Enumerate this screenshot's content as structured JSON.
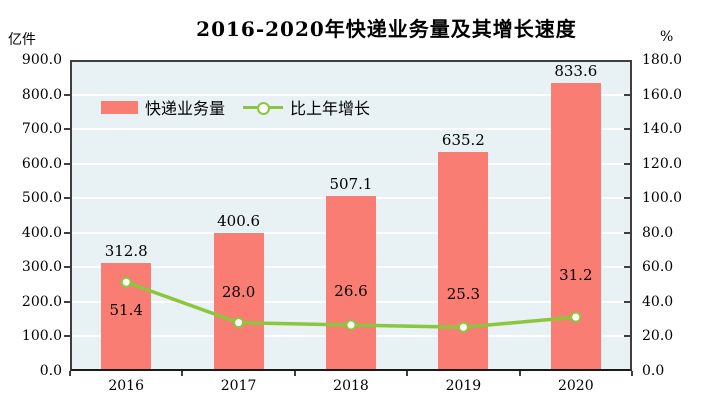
{
  "chart_data": {
    "type": "bar+line",
    "title": "2016-2020年快递业务量及其增长速度",
    "categories": [
      "2016",
      "2017",
      "2018",
      "2019",
      "2020"
    ],
    "series": [
      {
        "name": "快递业务量",
        "type": "bar",
        "axis": "left",
        "color": "#fa7d73",
        "values": [
          312.8,
          400.6,
          507.1,
          635.2,
          833.6
        ],
        "labels": [
          "312.8",
          "400.6",
          "507.1",
          "635.2",
          "833.6"
        ]
      },
      {
        "name": "比上年增长",
        "type": "line",
        "axis": "right",
        "color": "#8cc63e",
        "marker": "circle-white-fill",
        "values": [
          51.4,
          28.0,
          26.6,
          25.3,
          31.2
        ],
        "labels": [
          "51.4",
          "28.0",
          "26.6",
          "25.3",
          "31.2"
        ]
      }
    ],
    "left_axis": {
      "label": "亿件",
      "min": 0,
      "max": 900,
      "step": 100,
      "tick_labels": [
        "0.0",
        "100.0",
        "200.0",
        "300.0",
        "400.0",
        "500.0",
        "600.0",
        "700.0",
        "800.0",
        "900.0"
      ]
    },
    "right_axis": {
      "label": "%",
      "min": 0,
      "max": 180,
      "step": 20,
      "tick_labels": [
        "0.0",
        "20.0",
        "40.0",
        "60.0",
        "80.0",
        "100.0",
        "120.0",
        "140.0",
        "160.0",
        "180.0"
      ]
    },
    "grid": true,
    "legend_position": "inside-top-left",
    "plot_background": "#e8f1f4"
  }
}
